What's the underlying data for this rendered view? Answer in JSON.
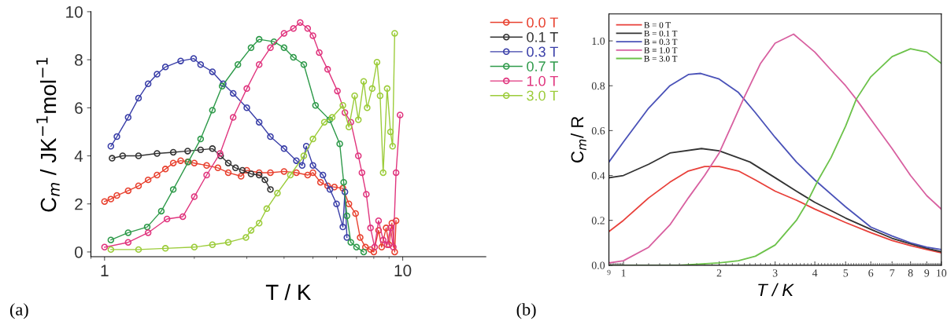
{
  "chart_data": [
    {
      "type": "line",
      "xlabel": "T / K",
      "ylabel": "C$_{m}$ / JK$^{−1}$mol$^{−1}$",
      "log": "x",
      "marker": "circle",
      "line_style": "solid",
      "grid": false,
      "legend": "right",
      "xlim": [
        0.9,
        19
      ],
      "xticks": [
        1,
        10
      ],
      "ylim": [
        -0.2,
        10
      ],
      "yticks": [
        0,
        2,
        4,
        6,
        8,
        10
      ],
      "annotations": [
        "(a)"
      ],
      "series": [
        {
          "name": "0.0 T",
          "color": "#e8412f",
          "x": [
            1.0,
            1.05,
            1.1,
            1.2,
            1.3,
            1.4,
            1.5,
            1.6,
            1.7,
            1.8,
            1.9,
            2.0,
            2.2,
            2.4,
            2.6,
            2.87,
            3.0,
            3.3,
            3.6,
            4.0,
            4.4,
            4.8,
            5.0,
            5.3,
            5.6,
            5.9,
            6.3,
            6.6,
            6.95,
            7.2,
            7.5,
            7.8,
            8.0,
            8.3,
            8.5,
            8.8,
            9.0,
            9.2,
            9.4,
            9.5
          ],
          "values": [
            2.1,
            2.2,
            2.35,
            2.55,
            2.75,
            3.0,
            3.2,
            3.45,
            3.7,
            3.8,
            3.75,
            3.7,
            3.6,
            3.5,
            3.3,
            3.15,
            3.4,
            3.3,
            3.3,
            3.35,
            3.3,
            3.2,
            3.3,
            2.9,
            2.75,
            2.7,
            2.65,
            2.0,
            1.6,
            0.6,
            0.2,
            0.1,
            0.0,
            0.9,
            0.2,
            1.0,
            0.3,
            1.2,
            0.0,
            1.3
          ]
        },
        {
          "name": "0.1 T",
          "color": "#333333",
          "x": [
            1.06,
            1.15,
            1.3,
            1.5,
            1.7,
            1.9,
            2.1,
            2.3,
            2.45,
            2.6,
            2.75,
            2.9,
            3.1,
            3.3,
            3.45,
            3.6
          ],
          "values": [
            3.9,
            4.0,
            4.0,
            4.1,
            4.15,
            4.2,
            4.25,
            4.3,
            4.0,
            3.7,
            3.5,
            3.4,
            3.25,
            3.2,
            3.0,
            2.6
          ]
        },
        {
          "name": "0.3 T",
          "color": "#3a3fa8",
          "x": [
            1.05,
            1.1,
            1.2,
            1.3,
            1.4,
            1.5,
            1.6,
            1.8,
            1.99,
            2.1,
            2.3,
            2.5,
            2.7,
            3.0,
            3.3,
            3.6,
            4.0,
            4.4,
            4.6,
            4.75,
            5.0,
            5.4,
            5.7,
            6.0,
            6.3,
            6.4,
            6.5
          ],
          "values": [
            4.4,
            4.8,
            5.6,
            6.4,
            7.0,
            7.4,
            7.7,
            7.95,
            8.05,
            7.8,
            7.5,
            7.0,
            6.6,
            6.0,
            5.4,
            4.8,
            4.3,
            3.8,
            3.6,
            4.4,
            3.6,
            3.2,
            2.6,
            2.0,
            1.04,
            2.5,
            0.6
          ]
        },
        {
          "name": "0.7 T",
          "color": "#2e9a4a",
          "x": [
            1.05,
            1.2,
            1.39,
            1.55,
            1.7,
            1.91,
            2.1,
            2.3,
            2.48,
            2.8,
            3.1,
            3.3,
            3.7,
            4.0,
            4.3,
            4.66,
            5.1,
            5.69,
            6.15,
            6.34,
            6.5,
            6.7,
            7.0,
            7.4
          ],
          "values": [
            0.5,
            0.8,
            1.04,
            1.7,
            2.6,
            3.75,
            4.7,
            5.9,
            6.9,
            7.8,
            8.5,
            8.85,
            8.75,
            8.5,
            8.1,
            7.8,
            6.1,
            5.5,
            4.5,
            2.9,
            1.5,
            0.4,
            0.2,
            0.0
          ]
        },
        {
          "name": "1.0 T",
          "color": "#e0357e",
          "x": [
            1.0,
            1.2,
            1.4,
            1.62,
            1.83,
            2.0,
            2.2,
            2.44,
            2.7,
            3.0,
            3.3,
            3.6,
            4.0,
            4.3,
            4.53,
            4.8,
            5.0,
            5.25,
            5.6,
            6.04,
            6.4,
            6.7,
            7.1,
            7.3,
            7.55,
            7.8,
            8.05,
            8.3,
            8.6,
            8.87,
            9.1,
            9.3,
            9.5,
            9.8
          ],
          "values": [
            0.2,
            0.4,
            0.8,
            1.37,
            1.47,
            2.3,
            3.2,
            4.1,
            5.6,
            6.8,
            7.8,
            8.5,
            9.1,
            9.3,
            9.55,
            9.3,
            9.0,
            8.3,
            7.6,
            6.7,
            5.8,
            5.4,
            4.0,
            3.3,
            2.4,
            1.0,
            0.2,
            1.3,
            0.5,
            0.3,
            1.0,
            0.2,
            3.3,
            5.7
          ]
        },
        {
          "name": "3.0 T",
          "color": "#9ccc3a",
          "x": [
            1.05,
            1.3,
            1.6,
            2.0,
            2.3,
            2.6,
            2.98,
            3.1,
            3.3,
            3.5,
            3.8,
            4.2,
            4.66,
            5.0,
            5.46,
            5.8,
            6.3,
            6.6,
            6.9,
            7.1,
            7.4,
            7.6,
            7.9,
            8.2,
            8.4,
            8.6,
            8.87,
            9.1,
            9.25,
            9.4
          ],
          "values": [
            0.1,
            0.1,
            0.15,
            0.2,
            0.3,
            0.4,
            0.6,
            0.9,
            1.2,
            1.8,
            2.45,
            3.2,
            4.0,
            4.7,
            5.4,
            5.6,
            6.1,
            5.2,
            6.5,
            5.5,
            7.1,
            6.0,
            6.8,
            7.9,
            6.5,
            3.3,
            6.8,
            5.0,
            4.4,
            9.1
          ]
        }
      ]
    },
    {
      "type": "line",
      "xlabel": "T / K",
      "ylabel": "C$_{m}$/ R",
      "log": "x",
      "marker": "none",
      "line_style": "solid",
      "grid": false,
      "legend": "top left",
      "xlim": [
        0.9,
        10
      ],
      "xticks": [
        {
          "value": 0.9,
          "label": null
        },
        1,
        2,
        3,
        4,
        5,
        6,
        7,
        8,
        9,
        10
      ],
      "ylim": [
        0,
        1.12
      ],
      "yticks": [
        {
          "value": 0,
          "label": "0.0"
        },
        {
          "value": 0.2,
          "label": "0.2"
        },
        {
          "value": 0.4,
          "label": "0.4"
        },
        {
          "value": 0.6,
          "label": "0.6"
        },
        {
          "value": 0.8,
          "label": "0.8"
        },
        {
          "value": 1.0,
          "label": "1.0"
        }
      ],
      "annotations": [
        "(b)",
        {
          "text": "9",
          "x": 0.9,
          "y": 0
        }
      ],
      "series": [
        {
          "name": "B = 0 T",
          "color": "#e8403a",
          "x": [
            0.9,
            1.0,
            1.2,
            1.4,
            1.6,
            1.8,
            2.0,
            2.3,
            2.6,
            3.0,
            3.5,
            4.0,
            5.0,
            6.0,
            7.0,
            8.0,
            9.0,
            10
          ],
          "values": [
            0.15,
            0.2,
            0.3,
            0.37,
            0.42,
            0.44,
            0.44,
            0.42,
            0.38,
            0.33,
            0.29,
            0.25,
            0.19,
            0.145,
            0.11,
            0.087,
            0.07,
            0.055
          ]
        },
        {
          "name": "B = 0.1 T",
          "color": "#333333",
          "x": [
            0.9,
            1.0,
            1.2,
            1.4,
            1.76,
            2.0,
            2.5,
            3.0,
            3.5,
            4.0,
            5.0,
            6.0,
            7.0,
            8.0,
            9.0,
            10
          ],
          "values": [
            0.39,
            0.4,
            0.45,
            0.5,
            0.52,
            0.51,
            0.46,
            0.39,
            0.33,
            0.28,
            0.21,
            0.16,
            0.12,
            0.095,
            0.075,
            0.06
          ]
        },
        {
          "name": "B = 0.3 T",
          "color": "#4a52b8",
          "x": [
            0.9,
            1.0,
            1.2,
            1.4,
            1.6,
            1.75,
            2.0,
            2.3,
            2.6,
            3.0,
            3.5,
            4.0,
            5.0,
            6.0,
            7.0,
            8.0,
            9.0,
            10
          ],
          "values": [
            0.46,
            0.55,
            0.7,
            0.8,
            0.85,
            0.855,
            0.83,
            0.77,
            0.68,
            0.57,
            0.46,
            0.38,
            0.26,
            0.17,
            0.13,
            0.1,
            0.08,
            0.07
          ]
        },
        {
          "name": "B = 1.0 T",
          "color": "#d860a0",
          "x": [
            0.9,
            1.0,
            1.2,
            1.4,
            1.6,
            1.8,
            2.0,
            2.2,
            2.4,
            2.7,
            3.0,
            3.43,
            4.0,
            4.5,
            5.0,
            5.4,
            6.0,
            7.0,
            8.0,
            9.0,
            10
          ],
          "values": [
            0.01,
            0.02,
            0.08,
            0.18,
            0.3,
            0.4,
            0.5,
            0.63,
            0.75,
            0.9,
            0.99,
            1.03,
            0.95,
            0.87,
            0.8,
            0.74,
            0.65,
            0.52,
            0.4,
            0.31,
            0.25
          ]
        },
        {
          "name": "B = 3.0 T",
          "color": "#6cc24a",
          "x": [
            0.9,
            1.5,
            2.0,
            2.3,
            2.6,
            3.0,
            3.5,
            3.75,
            4.1,
            4.5,
            5.0,
            5.4,
            6.0,
            7.0,
            8.0,
            9.0,
            10
          ],
          "values": [
            0.0,
            0.0,
            0.01,
            0.02,
            0.04,
            0.09,
            0.2,
            0.27,
            0.38,
            0.48,
            0.62,
            0.74,
            0.84,
            0.93,
            0.965,
            0.95,
            0.9
          ]
        }
      ]
    }
  ]
}
